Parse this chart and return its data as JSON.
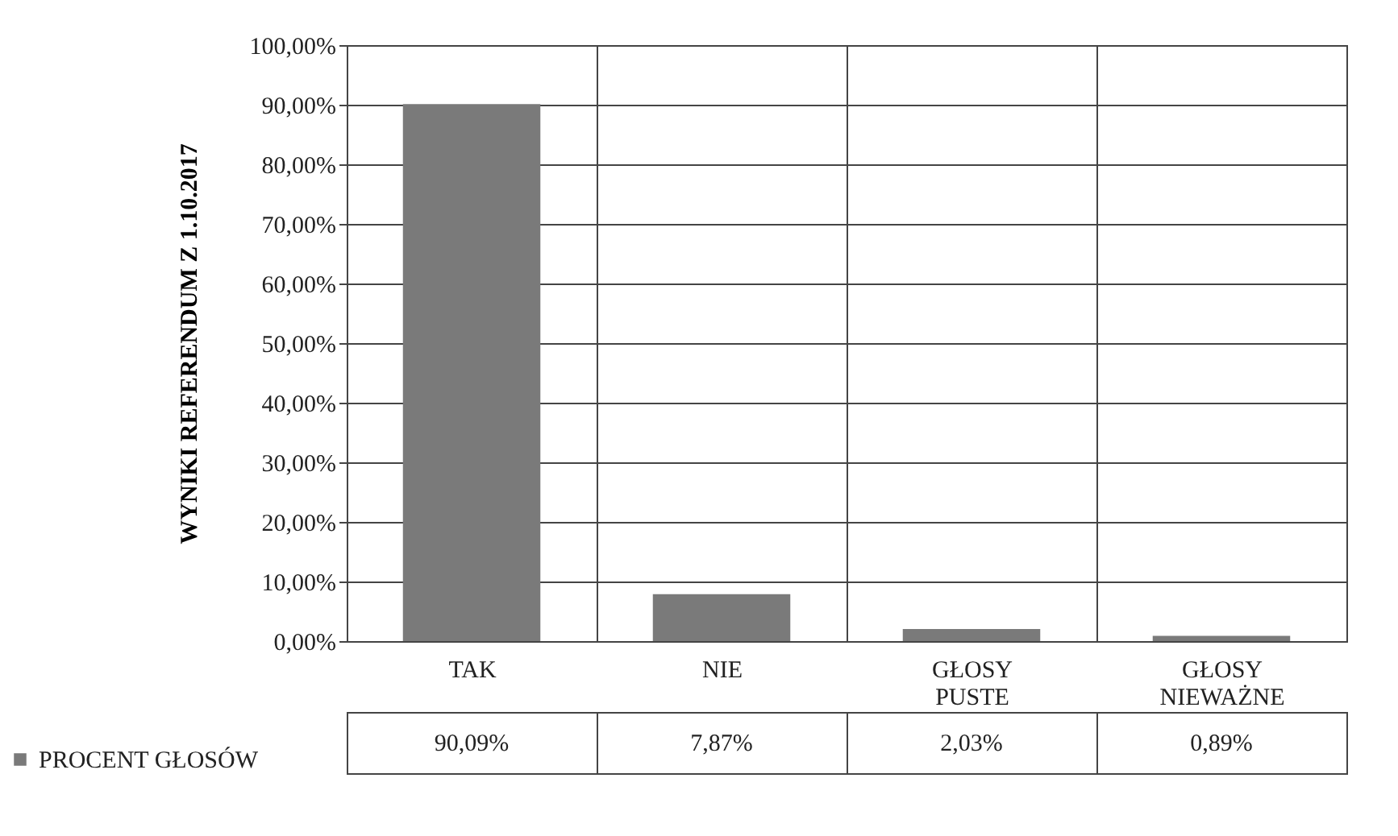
{
  "chart_data": {
    "type": "bar",
    "ylabel": "WYNIKI REFERENDUM Z 1.10.2017",
    "categories": [
      "TAK",
      "NIE",
      "GŁOSY PUSTE",
      "GŁOSY NIEWAŻNE"
    ],
    "series": [
      {
        "name": "PROCENT GŁOSÓW",
        "color": "#7a7a7a",
        "values": [
          90.09,
          7.87,
          2.03,
          0.89
        ],
        "value_labels": [
          "90,09%",
          "7,87%",
          "2,03%",
          "0,89%"
        ]
      }
    ],
    "ylim": [
      0,
      100
    ],
    "yticks": [
      {
        "value": 0,
        "label": "0,00%"
      },
      {
        "value": 10,
        "label": "10,00%"
      },
      {
        "value": 20,
        "label": "20,00%"
      },
      {
        "value": 30,
        "label": "30,00%"
      },
      {
        "value": 40,
        "label": "40,00%"
      },
      {
        "value": 50,
        "label": "50,00%"
      },
      {
        "value": 60,
        "label": "60,00%"
      },
      {
        "value": 70,
        "label": "70,00%"
      },
      {
        "value": 80,
        "label": "80,00%"
      },
      {
        "value": 90,
        "label": "90,00%"
      },
      {
        "value": 100,
        "label": "100,00%"
      }
    ],
    "grid": "y",
    "legend": "bottom left"
  }
}
